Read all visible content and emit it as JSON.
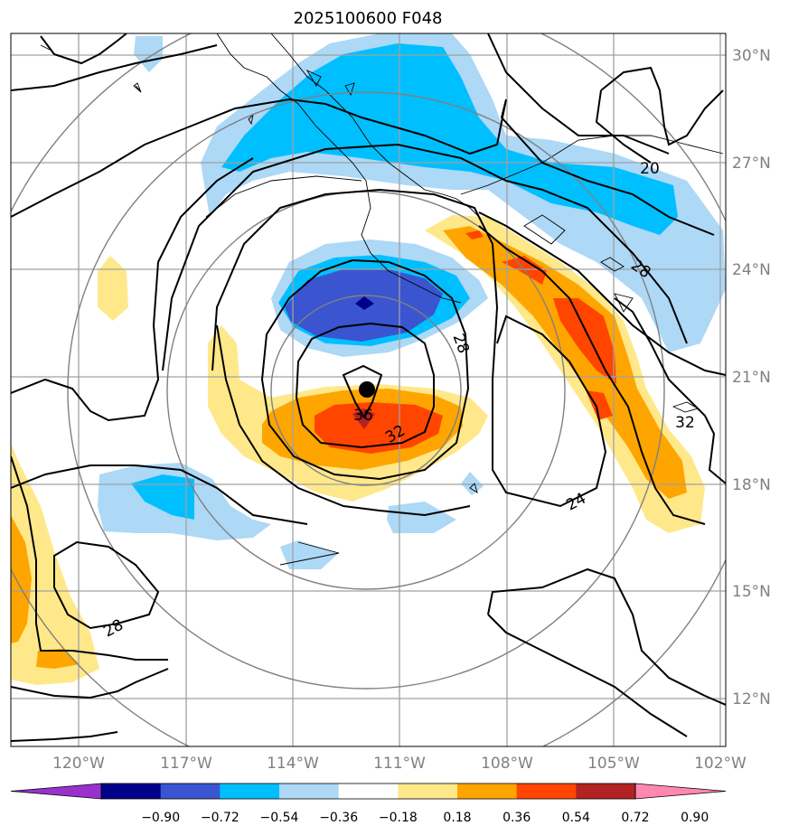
{
  "title": "2025100600 F048",
  "lon_labels": [
    "120°W",
    "117°W",
    "114°W",
    "111°W",
    "108°W",
    "105°W",
    "102°W"
  ],
  "lat_labels": [
    "30°N",
    "27°N",
    "24°N",
    "21°N",
    "18°N",
    "15°N",
    "12°N"
  ],
  "contour_labels": [
    "36",
    "32",
    "28",
    "28",
    "24",
    "20",
    "32",
    "28"
  ],
  "colorbar": {
    "tick_labels": [
      "−0.90",
      "−0.72",
      "−0.54",
      "−0.36",
      "−0.18",
      "0.18",
      "0.36",
      "0.54",
      "0.72",
      "0.90"
    ],
    "colors": [
      "#9932cc",
      "#00008b",
      "#3a55cf",
      "#00bfff",
      "#add8f6",
      "#ffffff",
      "#ffe88a",
      "#ffa500",
      "#ff4500",
      "#b22222",
      "#ff88b0"
    ]
  },
  "colors": {
    "gridline": "#a0a0a0",
    "contour": "#000000",
    "range_ring": "#808080",
    "tick_label": "#808080"
  },
  "center_marker": "storm-center-dot"
}
